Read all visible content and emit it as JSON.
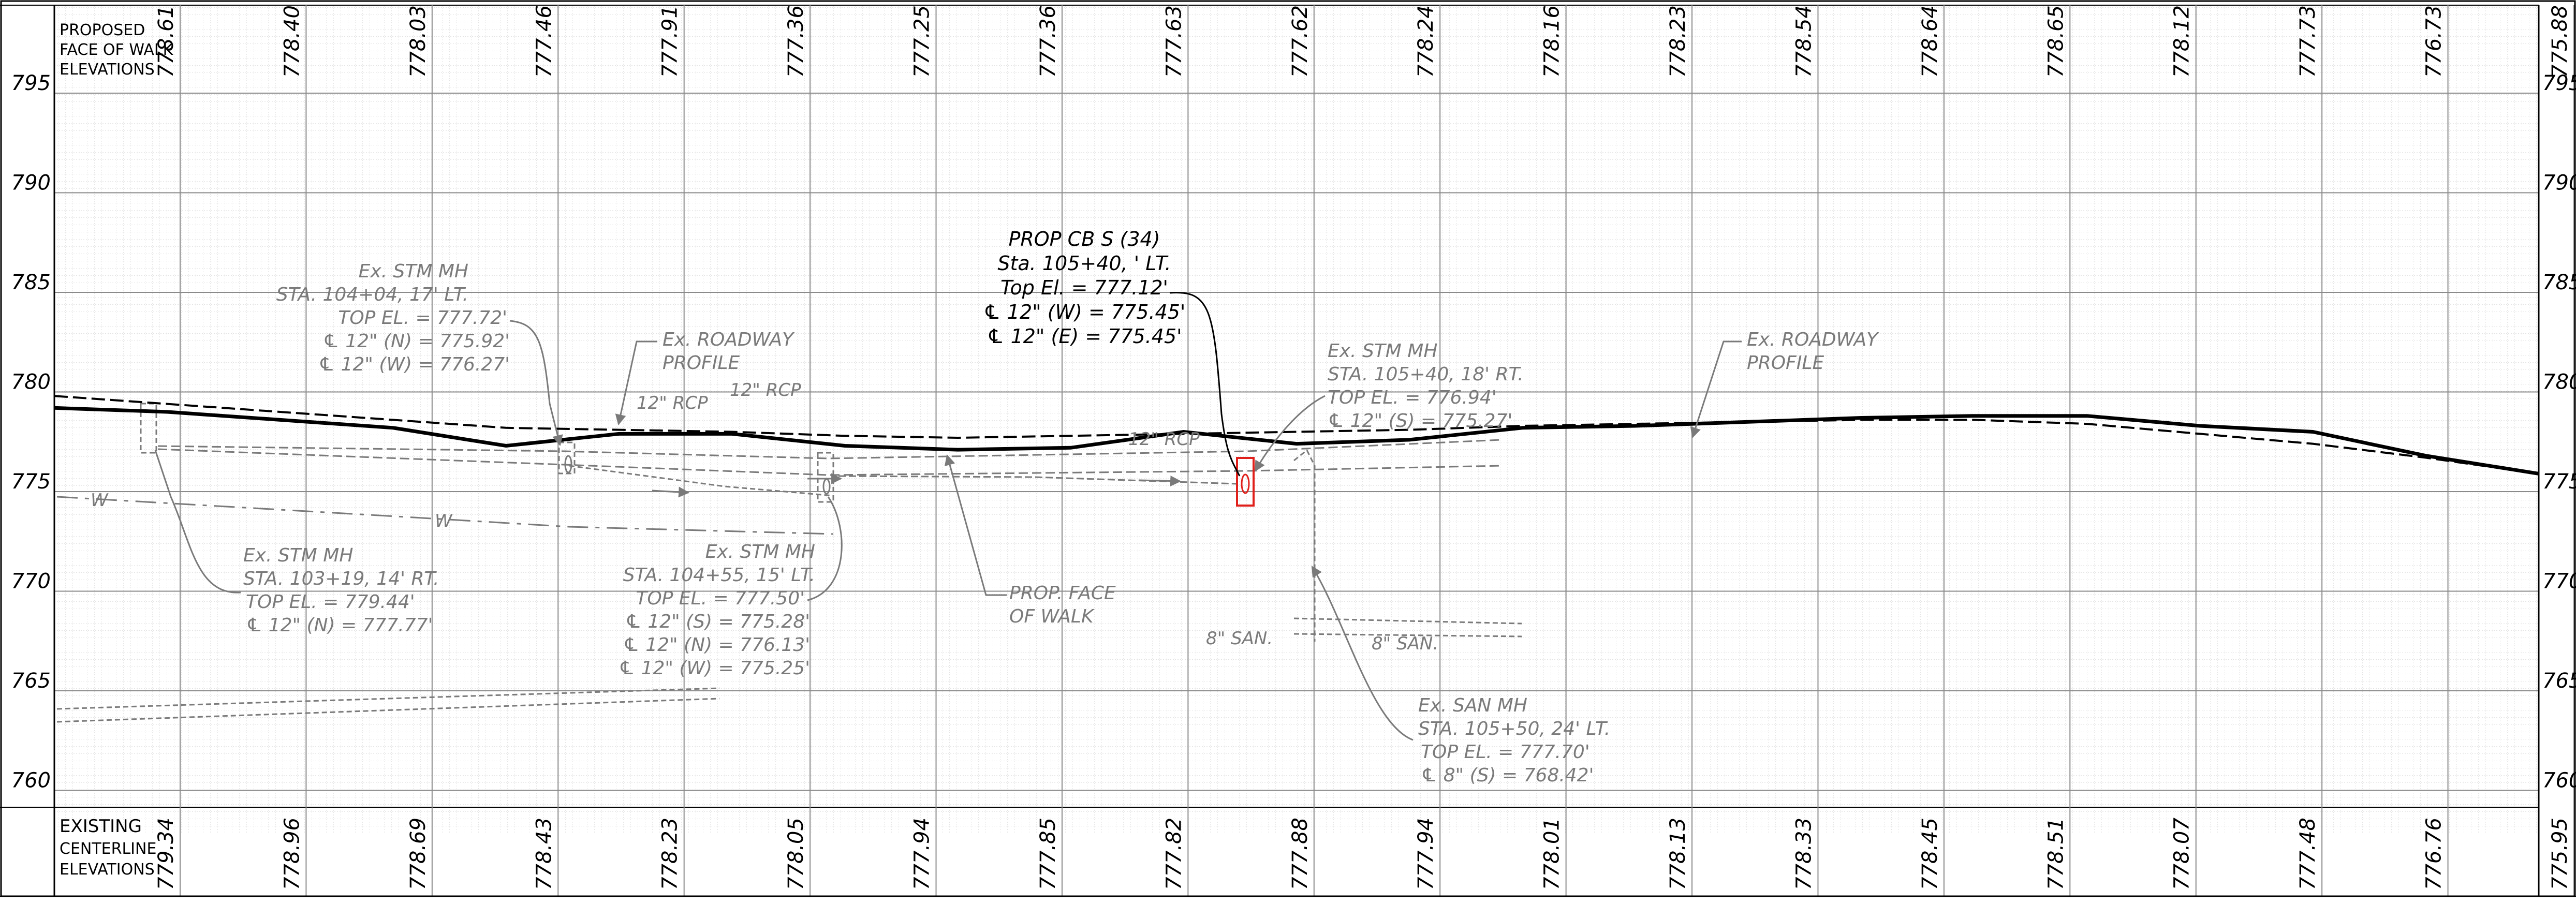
{
  "sheet": {
    "top_band_label": [
      "PROPOSED",
      "FACE OF WALK",
      "ELEVATIONS"
    ],
    "bottom_band_label": [
      "EXISTING",
      "CENTERLINE",
      "ELEVATIONS"
    ],
    "elevation_axis": [
      {
        "value": 795,
        "label": "795"
      },
      {
        "value": 790,
        "label": "790"
      },
      {
        "value": 785,
        "label": "785"
      },
      {
        "value": 780,
        "label": "780"
      },
      {
        "value": 775,
        "label": "775"
      },
      {
        "value": 770,
        "label": "770"
      },
      {
        "value": 765,
        "label": "765"
      },
      {
        "value": 760,
        "label": "760"
      }
    ],
    "proposed_face_of_walk_elevations": [
      "778.61",
      "778.40",
      "778.03",
      "777.46",
      "777.91",
      "777.36",
      "777.25",
      "777.36",
      "777.63",
      "777.62",
      "778.24",
      "778.16",
      "778.23",
      "778.54",
      "778.64",
      "778.65",
      "778.12",
      "777.73",
      "776.73",
      "775.88"
    ],
    "existing_centerline_elevations": [
      "779.34",
      "778.96",
      "778.69",
      "778.43",
      "778.23",
      "778.05",
      "777.94",
      "777.85",
      "777.82",
      "777.88",
      "777.94",
      "778.01",
      "778.13",
      "778.33",
      "778.45",
      "778.51",
      "778.07",
      "777.48",
      "776.76",
      "775.95"
    ]
  },
  "profiles": {
    "proposed_face_of_walk": [
      779.2,
      779.0,
      778.6,
      778.2,
      777.3,
      777.9,
      777.9,
      777.3,
      777.1,
      777.2,
      778.0,
      777.4,
      777.6,
      778.2,
      778.3,
      778.5,
      778.7,
      778.8,
      778.8,
      778.3,
      778.0,
      776.8,
      775.9
    ],
    "existing_roadway": [
      779.8,
      779.4,
      779.0,
      778.6,
      778.2,
      778.1,
      778.0,
      777.8,
      777.7,
      777.8,
      777.9,
      778.0,
      778.1,
      778.3,
      778.4,
      778.5,
      778.6,
      778.6,
      778.4,
      777.9,
      777.4,
      776.7,
      775.9
    ]
  },
  "annotations": {
    "cb_s34": [
      "PROP CB S (34)",
      "Sta. 105+40, ' LT.",
      "Top El. = 777.12'",
      "℄ 12\" (W) = 775.45'",
      "℄ 12\" (E) = 775.45'"
    ],
    "stm_mh_104_04": [
      "Ex. STM MH",
      "STA. 104+04, 17' LT.",
      "TOP EL. = 777.72'",
      "℄ 12\" (N) = 775.92'",
      "℄ 12\" (W) = 776.27'"
    ],
    "roadway_profile_1": [
      "Ex. ROADWAY",
      "PROFILE"
    ],
    "stm_mh_105_40": [
      "Ex. STM MH",
      "STA. 105+40, 18' RT.",
      "TOP EL. = 776.94'",
      "℄ 12\" (S) = 775.27'"
    ],
    "roadway_profile_2": [
      "Ex. ROADWAY",
      "PROFILE"
    ],
    "stm_mh_103_19": [
      "Ex. STM MH",
      "STA. 103+19, 14' RT.",
      "TOP EL. = 779.44'",
      "℄ 12\" (N) = 777.77'"
    ],
    "stm_mh_104_55": [
      "Ex. STM MH",
      "STA. 104+55, 15' LT.",
      "TOP EL. = 777.50'",
      "℄ 12\" (S) = 775.28'",
      "℄ 12\" (N) = 776.13'",
      "℄ 12\" (W) = 775.25'"
    ],
    "prop_face_of_walk": [
      "PROP. FACE",
      "OF WALK"
    ],
    "san_mh_105_50": [
      "Ex. SAN MH",
      "STA. 105+50, 24' LT.",
      "TOP EL. = 777.70'",
      "℄ 8\" (S) = 768.42'"
    ],
    "pipe_labels": [
      "12\" RCP",
      "12\" RCP",
      "12\" RCP",
      "8\" SAN.",
      "8\" SAN."
    ],
    "water_marks": [
      "W",
      "W"
    ]
  },
  "colors": {
    "grid_major": "#8a8a8a",
    "grid_minor": "#c8c8c8",
    "existing_utility": "#7a7a7a",
    "proposed": "#000000",
    "proposed_structure": "#e0201b"
  }
}
